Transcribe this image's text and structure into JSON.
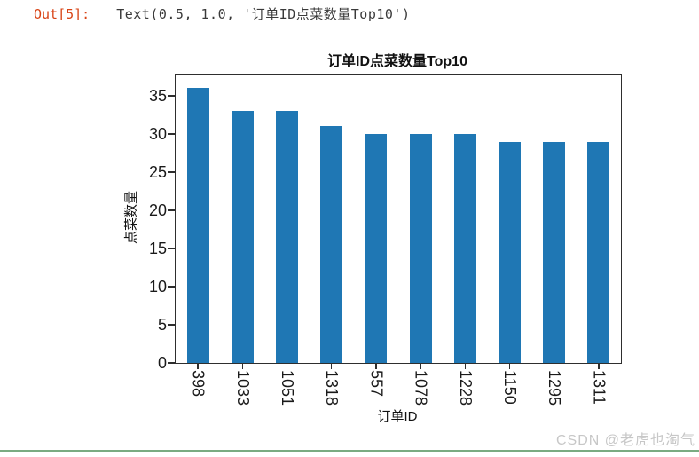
{
  "output_cell": {
    "prompt": "Out[5]:",
    "result": "Text(0.5, 1.0, '订单ID点菜数量Top10')"
  },
  "chart_data": {
    "type": "bar",
    "title": "订单ID点菜数量Top10",
    "xlabel": "订单ID",
    "ylabel": "点菜数量",
    "categories": [
      "398",
      "1033",
      "1051",
      "1318",
      "557",
      "1078",
      "1228",
      "1150",
      "1295",
      "1311"
    ],
    "values": [
      36,
      33,
      33,
      31,
      30,
      30,
      30,
      29,
      29,
      29
    ],
    "yticks": [
      0,
      5,
      10,
      15,
      20,
      25,
      30,
      35
    ],
    "ylim": [
      0,
      37.8
    ],
    "xtick_rotation": 90,
    "grid": false,
    "legend": null,
    "bar_color": "#1f77b4"
  },
  "watermark": {
    "text": "CSDN @老虎也淘气"
  },
  "colors": {
    "out_prompt": "#d84315",
    "bar": "#1f77b4",
    "spine": "#2e2e2e",
    "watermark": "#c7c7c7",
    "divider": "#7aab82"
  }
}
